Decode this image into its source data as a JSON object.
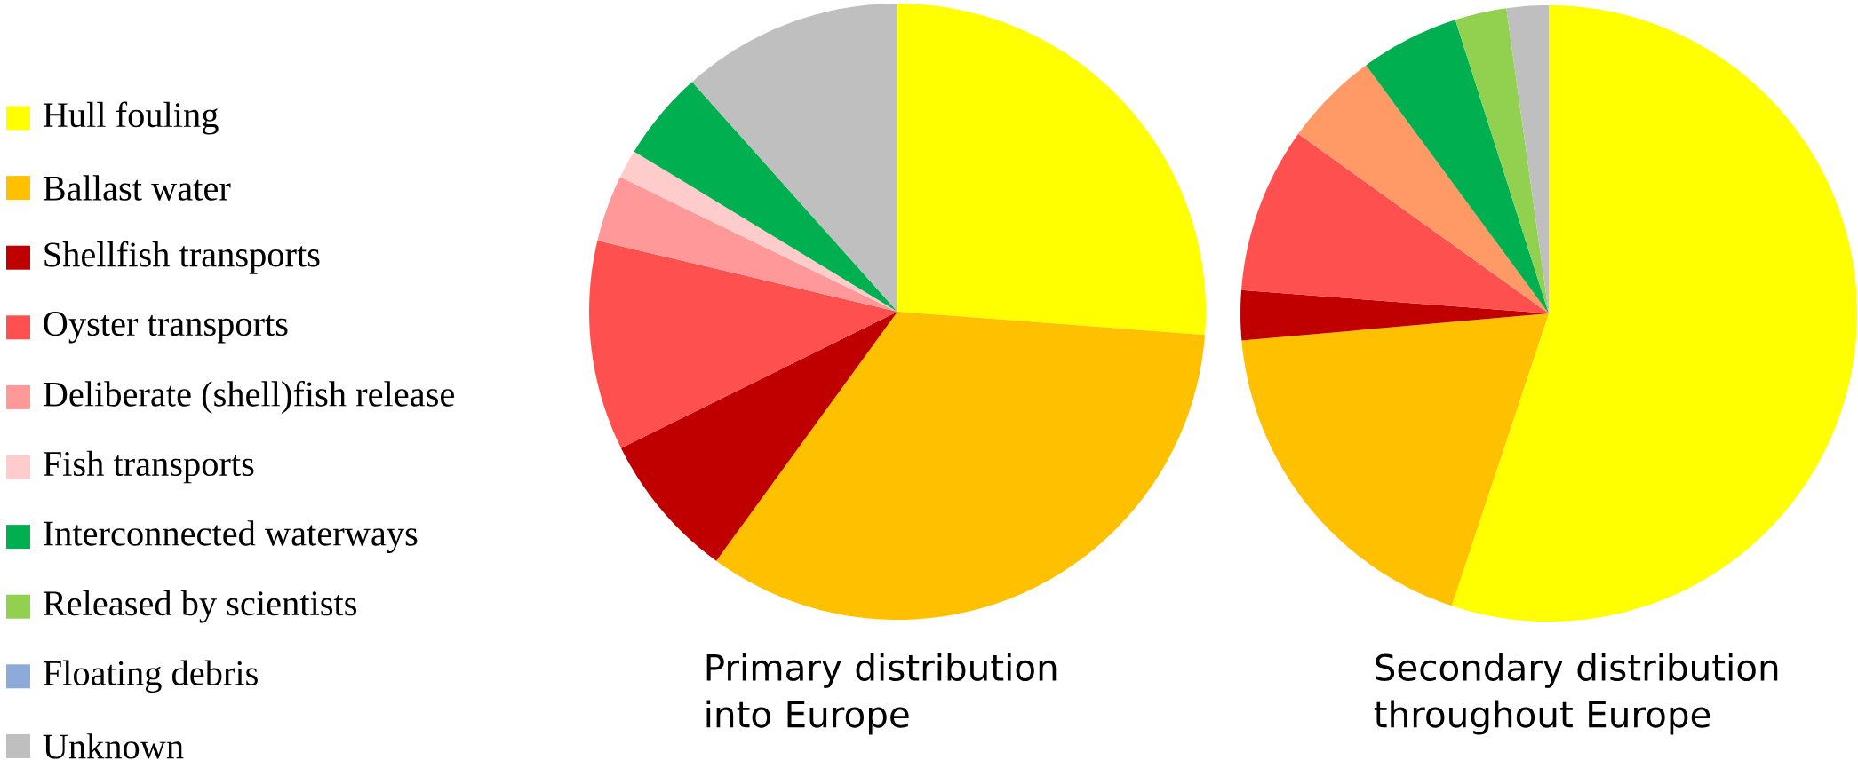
{
  "chart_data": [
    {
      "type": "pie",
      "title": "Primary distribution into Europe",
      "legend": "left",
      "categories": [
        "Hull fouling",
        "Ballast water",
        "Shellfish transports",
        "Oyster transports",
        "Deliberate (shell)fish release",
        "Fish transports",
        "Interconnected waterways",
        "Released by scientists",
        "Floating debris",
        "Unknown"
      ],
      "values": [
        26.2,
        33.8,
        7.7,
        11,
        3.5,
        1.5,
        4.7,
        0,
        0,
        11.6
      ],
      "colors": [
        "#ffff00",
        "#ffc000",
        "#c00000",
        "#ff5050",
        "#ff9999",
        "#ffcccc",
        "#00b050",
        "#92d050",
        "#8eaadb",
        "#bfbfbf"
      ]
    },
    {
      "type": "pie",
      "title": "Secondary distribution throughout Europe",
      "categories": [
        null,
        null,
        null,
        null,
        null,
        null,
        null,
        null,
        null,
        null
      ],
      "values": [
        55.1,
        18.5,
        2.6,
        8.7,
        5,
        0,
        5.2,
        2.7,
        0,
        2.2
      ],
      "colors": [
        "#ffff00",
        "#ffc000",
        "#c00000",
        "#ff5050",
        "#ff9966",
        "#ffcccc",
        "#00b050",
        "#92d050",
        "#8eaadb",
        "#bfbfbf"
      ]
    }
  ]
}
